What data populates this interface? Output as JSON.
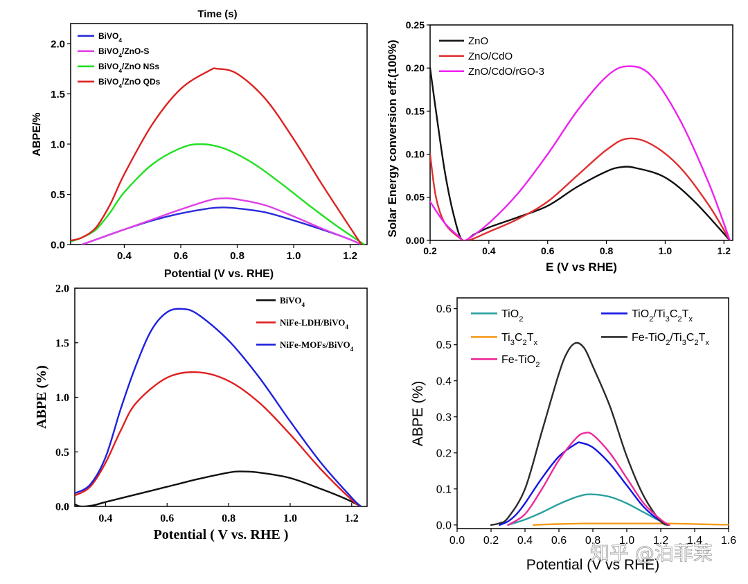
{
  "chart_data": [
    {
      "type": "line",
      "title": "Time (s)",
      "xlabel": "Potential (V vs. RHE)",
      "ylabel": "ABPE/%",
      "xlim": [
        0.21,
        1.26
      ],
      "ylim": [
        0.0,
        2.2
      ],
      "xticks": [
        0.4,
        0.6,
        0.8,
        1.0,
        1.2
      ],
      "xtick_labels": [
        "0.4",
        "0.6",
        "0.8",
        "1.0",
        "1.2"
      ],
      "yticks": [
        0.0,
        0.5,
        1.0,
        1.5,
        2.0
      ],
      "ytick_labels": [
        "0.0",
        "0.5",
        "1.0",
        "1.5",
        "2.0"
      ],
      "legend_position": "top-left",
      "series": [
        {
          "name": "BiVO4",
          "legend": {
            "pre": "BiVO",
            "sub": "4",
            "post": ""
          },
          "color": "#2b2bd9",
          "x": [
            0.25,
            0.3,
            0.4,
            0.5,
            0.6,
            0.7,
            0.75,
            0.8,
            0.9,
            1.0,
            1.1,
            1.2,
            1.24
          ],
          "y": [
            0.0,
            0.05,
            0.15,
            0.24,
            0.31,
            0.36,
            0.37,
            0.36,
            0.32,
            0.24,
            0.15,
            0.05,
            0.0
          ]
        },
        {
          "name": "BiVO4/ZnO-S",
          "legend": {
            "pre": "BiVO",
            "sub": "4",
            "post": "/ZnO-S"
          },
          "color": "#e040e6",
          "x": [
            0.25,
            0.3,
            0.4,
            0.5,
            0.6,
            0.7,
            0.75,
            0.8,
            0.9,
            1.0,
            1.1,
            1.2,
            1.24
          ],
          "y": [
            0.0,
            0.05,
            0.15,
            0.25,
            0.35,
            0.44,
            0.46,
            0.45,
            0.39,
            0.28,
            0.16,
            0.05,
            0.0
          ]
        },
        {
          "name": "BiVO4/ZnO NSs",
          "legend": {
            "pre": "BiVO",
            "sub": "4",
            "post": "/ZnO NSs"
          },
          "color": "#22e022",
          "x": [
            0.21,
            0.25,
            0.3,
            0.35,
            0.4,
            0.5,
            0.6,
            0.67,
            0.75,
            0.85,
            0.95,
            1.05,
            1.15,
            1.25
          ],
          "y": [
            0.03,
            0.07,
            0.15,
            0.32,
            0.52,
            0.8,
            0.96,
            1.0,
            0.96,
            0.82,
            0.62,
            0.4,
            0.19,
            0.0
          ]
        },
        {
          "name": "BiVO4/ZnO QDs",
          "legend": {
            "pre": "BiVO",
            "sub": "4",
            "post": "/ZnO QDs"
          },
          "color": "#dd2222",
          "x": [
            0.21,
            0.25,
            0.3,
            0.35,
            0.4,
            0.5,
            0.6,
            0.7,
            0.73,
            0.8,
            0.9,
            1.0,
            1.1,
            1.2,
            1.24
          ],
          "y": [
            0.04,
            0.07,
            0.17,
            0.4,
            0.7,
            1.2,
            1.55,
            1.73,
            1.75,
            1.7,
            1.45,
            1.05,
            0.6,
            0.17,
            0.0
          ]
        }
      ]
    },
    {
      "type": "line",
      "title": "",
      "xlabel": "E (V vs RHE)",
      "ylabel": "Solar Energy conversion eff.(100%)",
      "xlim": [
        0.2,
        1.23
      ],
      "ylim": [
        0.0,
        0.25
      ],
      "xticks": [
        0.2,
        0.4,
        0.6,
        0.8,
        1.0,
        1.2
      ],
      "xtick_labels": [
        "0.2",
        "0.4",
        "0.6",
        "0.8",
        "1.0",
        "1.2"
      ],
      "yticks": [
        0.0,
        0.05,
        0.1,
        0.15,
        0.2,
        0.25
      ],
      "ytick_labels": [
        "0.00",
        "0.05",
        "0.10",
        "0.15",
        "0.20",
        "0.25"
      ],
      "legend_position": "top-left",
      "series": [
        {
          "name": "ZnO",
          "color": "#111111",
          "x": [
            0.2,
            0.22,
            0.25,
            0.28,
            0.31,
            0.35,
            0.4,
            0.5,
            0.6,
            0.7,
            0.8,
            0.85,
            0.9,
            1.0,
            1.1,
            1.22
          ],
          "y": [
            0.2,
            0.15,
            0.08,
            0.03,
            0.0,
            0.007,
            0.015,
            0.027,
            0.04,
            0.062,
            0.08,
            0.085,
            0.084,
            0.073,
            0.045,
            0.0
          ]
        },
        {
          "name": "ZnO/CdO",
          "color": "#e03030",
          "x": [
            0.2,
            0.22,
            0.25,
            0.3,
            0.33,
            0.4,
            0.5,
            0.6,
            0.7,
            0.8,
            0.87,
            0.95,
            1.05,
            1.15,
            1.22
          ],
          "y": [
            0.1,
            0.05,
            0.02,
            0.003,
            0.0,
            0.01,
            0.025,
            0.045,
            0.075,
            0.105,
            0.118,
            0.112,
            0.085,
            0.04,
            0.0
          ]
        },
        {
          "name": "ZnO/CdO/rGO-3",
          "color": "#ee22ee",
          "x": [
            0.2,
            0.25,
            0.3,
            0.32,
            0.4,
            0.5,
            0.6,
            0.7,
            0.8,
            0.87,
            0.95,
            1.05,
            1.15,
            1.22
          ],
          "y": [
            0.045,
            0.02,
            0.004,
            0.0,
            0.02,
            0.055,
            0.1,
            0.15,
            0.19,
            0.202,
            0.192,
            0.14,
            0.065,
            0.0
          ]
        }
      ]
    },
    {
      "type": "line",
      "title": "",
      "xlabel": "Potential ( V vs. RHE )",
      "ylabel": "ABPE (%)",
      "xlim": [
        0.3,
        1.25
      ],
      "ylim": [
        0.0,
        2.0
      ],
      "xticks": [
        0.4,
        0.6,
        0.8,
        1.0,
        1.2
      ],
      "xtick_labels": [
        "0.4",
        "0.6",
        "0.8",
        "1.0",
        "1.2"
      ],
      "yticks": [
        0.0,
        0.5,
        1.0,
        1.5,
        2.0
      ],
      "ytick_labels": [
        "0.0",
        "0.5",
        "1.0",
        "1.5",
        "2.0"
      ],
      "legend_position": "top-right",
      "series": [
        {
          "name": "BiVO4",
          "legend": {
            "pre": "BiVO",
            "sub": "4",
            "post": ""
          },
          "color": "#111111",
          "x": [
            0.3,
            0.32,
            0.36,
            0.4,
            0.5,
            0.6,
            0.7,
            0.8,
            0.84,
            0.9,
            1.0,
            1.1,
            1.18,
            1.23
          ],
          "y": [
            0.02,
            0.0,
            0.01,
            0.04,
            0.11,
            0.18,
            0.25,
            0.31,
            0.32,
            0.31,
            0.26,
            0.16,
            0.07,
            0.0
          ]
        },
        {
          "name": "NiFe-LDH/BiVO4",
          "legend": {
            "pre": "NiFe-LDH/BiVO",
            "sub": "4",
            "post": ""
          },
          "color": "#e02020",
          "x": [
            0.3,
            0.35,
            0.4,
            0.45,
            0.5,
            0.6,
            0.7,
            0.8,
            0.9,
            1.0,
            1.1,
            1.2,
            1.23
          ],
          "y": [
            0.1,
            0.18,
            0.4,
            0.7,
            0.95,
            1.18,
            1.23,
            1.15,
            0.95,
            0.66,
            0.34,
            0.06,
            0.0
          ]
        },
        {
          "name": "NiFe-MOFs/BiVO4",
          "legend": {
            "pre": "NiFe-MOFs/BiVO",
            "sub": "4",
            "post": ""
          },
          "color": "#2020e0",
          "x": [
            0.3,
            0.35,
            0.4,
            0.45,
            0.5,
            0.55,
            0.6,
            0.65,
            0.7,
            0.8,
            0.9,
            1.0,
            1.1,
            1.2,
            1.23
          ],
          "y": [
            0.12,
            0.2,
            0.45,
            0.9,
            1.3,
            1.62,
            1.78,
            1.81,
            1.76,
            1.52,
            1.18,
            0.78,
            0.4,
            0.08,
            0.0
          ]
        }
      ]
    },
    {
      "type": "line",
      "title": "",
      "xlabel": "Potential (V vs RHE)",
      "ylabel": "ABPE (%)",
      "xlim": [
        0.0,
        1.6
      ],
      "ylim": [
        -0.01,
        0.63
      ],
      "xticks": [
        0.0,
        0.2,
        0.4,
        0.6,
        0.8,
        1.0,
        1.2,
        1.4,
        1.6
      ],
      "xtick_labels": [
        "0.0",
        "0.2",
        "0.4",
        "0.6",
        "0.8",
        "1.0",
        "1.2",
        "1.4",
        "1.6"
      ],
      "yticks": [
        0.0,
        0.1,
        0.2,
        0.3,
        0.4,
        0.5,
        0.6
      ],
      "ytick_labels": [
        "0.0",
        "0.1",
        "0.2",
        "0.3",
        "0.4",
        "0.5",
        "0.6"
      ],
      "legend_position": "top",
      "series": [
        {
          "name": "TiO2",
          "legend": {
            "parts": [
              {
                "t": "TiO"
              },
              {
                "t": "2",
                "sub": true
              }
            ]
          },
          "color": "#2aa0a0",
          "x": [
            0.3,
            0.4,
            0.5,
            0.6,
            0.7,
            0.78,
            0.9,
            1.0,
            1.1,
            1.2,
            1.24
          ],
          "y": [
            0.0,
            0.015,
            0.035,
            0.058,
            0.077,
            0.085,
            0.078,
            0.06,
            0.035,
            0.01,
            0.0
          ]
        },
        {
          "name": "TiO2/Ti3C2Tx",
          "legend": {
            "parts": [
              {
                "t": "TiO"
              },
              {
                "t": "2",
                "sub": true
              },
              {
                "t": "/Ti"
              },
              {
                "t": "3",
                "sub": true
              },
              {
                "t": "C"
              },
              {
                "t": "2",
                "sub": true
              },
              {
                "t": "T"
              },
              {
                "t": "x",
                "sub": true
              }
            ]
          },
          "color": "#1515e6",
          "x": [
            0.25,
            0.3,
            0.35,
            0.4,
            0.5,
            0.6,
            0.7,
            0.73,
            0.8,
            0.9,
            1.0,
            1.1,
            1.2,
            1.25
          ],
          "y": [
            0.0,
            0.01,
            0.03,
            0.06,
            0.13,
            0.19,
            0.225,
            0.228,
            0.215,
            0.17,
            0.11,
            0.05,
            0.01,
            0.0
          ]
        },
        {
          "name": "Ti3C2Tx",
          "legend": {
            "parts": [
              {
                "t": "Ti"
              },
              {
                "t": "3",
                "sub": true
              },
              {
                "t": "C"
              },
              {
                "t": "2",
                "sub": true
              },
              {
                "t": "T"
              },
              {
                "t": "x",
                "sub": true
              }
            ]
          },
          "color": "#f59a1a",
          "x": [
            0.45,
            0.55,
            0.65,
            0.75,
            0.85,
            0.95,
            1.05,
            1.15,
            1.25,
            1.35,
            1.45,
            1.55,
            1.6
          ],
          "y": [
            0.0,
            0.002,
            0.003,
            0.004,
            0.004,
            0.004,
            0.004,
            0.004,
            0.004,
            0.003,
            0.002,
            0.001,
            0.001
          ]
        },
        {
          "name": "Fe-TiO2/Ti3C2Tx",
          "legend": {
            "parts": [
              {
                "t": "Fe-TiO"
              },
              {
                "t": "2",
                "sub": true
              },
              {
                "t": "/Ti"
              },
              {
                "t": "3",
                "sub": true
              },
              {
                "t": "C"
              },
              {
                "t": "2",
                "sub": true
              },
              {
                "t": "T"
              },
              {
                "t": "x",
                "sub": true
              }
            ]
          },
          "color": "#2b2b2b",
          "x": [
            0.2,
            0.25,
            0.3,
            0.4,
            0.5,
            0.6,
            0.65,
            0.7,
            0.75,
            0.8,
            0.9,
            1.0,
            1.1,
            1.2,
            1.25
          ],
          "y": [
            0.0,
            0.005,
            0.02,
            0.1,
            0.26,
            0.42,
            0.48,
            0.505,
            0.49,
            0.44,
            0.33,
            0.19,
            0.08,
            0.01,
            0.0
          ]
        },
        {
          "name": "Fe-TiO2",
          "legend": {
            "parts": [
              {
                "t": "Fe-TiO"
              },
              {
                "t": "2",
                "sub": true
              }
            ]
          },
          "color": "#ee2a9a",
          "x": [
            0.3,
            0.4,
            0.5,
            0.6,
            0.7,
            0.75,
            0.8,
            0.9,
            1.0,
            1.1,
            1.2,
            1.25
          ],
          "y": [
            0.0,
            0.03,
            0.1,
            0.18,
            0.24,
            0.255,
            0.25,
            0.2,
            0.13,
            0.06,
            0.015,
            0.0
          ]
        }
      ]
    }
  ],
  "watermark": "知乎 @泊菲莱"
}
